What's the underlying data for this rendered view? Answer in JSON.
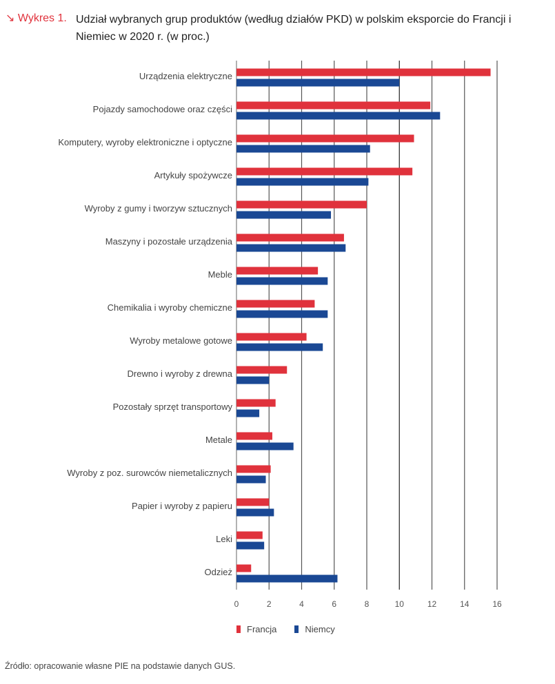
{
  "header": {
    "figure_label": "↘ Wykres 1.",
    "title": "Udział wybranych grup produktów (według działów PKD) w polskim eksporcie do Francji i Niemiec w 2020 r. (w proc.)"
  },
  "source": "Źródło: opracowanie własne PIE na podstawie danych GUS.",
  "chart_data": {
    "type": "bar",
    "orientation": "horizontal",
    "title": "Udział wybranych grup produktów (według działów PKD) w polskim eksporcie do Francji i Niemiec w 2020 r. (w proc.)",
    "xlabel": "",
    "ylabel": "",
    "xlim": [
      0,
      16
    ],
    "xticks": [
      0,
      2,
      4,
      6,
      8,
      10,
      12,
      14,
      16
    ],
    "grid": true,
    "legend_position": "bottom",
    "categories": [
      "Urządzenia elektryczne",
      "Pojazdy samochodowe oraz części",
      "Komputery, wyroby elektroniczne i optyczne",
      "Artykuły spożywcze",
      "Wyroby z gumy i tworzyw sztucznych",
      "Maszyny i pozostałe urządzenia",
      "Meble",
      "Chemikalia i wyroby chemiczne",
      "Wyroby metalowe gotowe",
      "Drewno i wyroby z drewna",
      "Pozostały sprzęt transportowy",
      "Metale",
      "Wyroby z poz. surowców niemetalicznych",
      "Papier i wyroby z papieru",
      "Leki",
      "Odzież"
    ],
    "series": [
      {
        "name": "Francja",
        "color": "#e0323c",
        "values": [
          15.6,
          11.9,
          10.9,
          10.8,
          8.0,
          6.6,
          5.0,
          4.8,
          4.3,
          3.1,
          2.4,
          2.2,
          2.1,
          2.0,
          1.6,
          0.9
        ]
      },
      {
        "name": "Niemcy",
        "color": "#1a4894",
        "values": [
          10.0,
          12.5,
          8.2,
          8.1,
          5.8,
          6.7,
          5.6,
          5.6,
          5.3,
          2.0,
          1.4,
          3.5,
          1.8,
          2.3,
          1.7,
          6.2
        ]
      }
    ]
  }
}
